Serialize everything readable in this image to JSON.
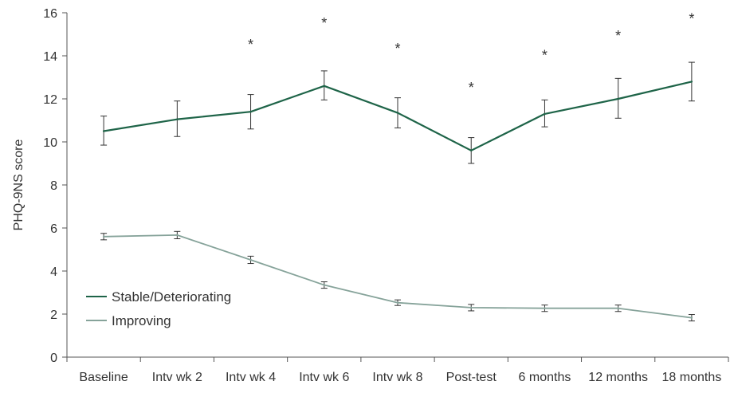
{
  "chart_data": {
    "type": "line",
    "title": "",
    "xlabel": "",
    "ylabel": "PHQ-9NS score",
    "ylim": [
      0,
      16
    ],
    "yticks": [
      0,
      2,
      4,
      6,
      8,
      10,
      12,
      14,
      16
    ],
    "grid": false,
    "legend_position": "bottom-left",
    "categories": [
      "Baseline",
      "Intv wk 2",
      "Intv wk 4",
      "Intv wk 6",
      "Intv wk 8",
      "Post-test",
      "6 months",
      "12 months",
      "18 months"
    ],
    "series": [
      {
        "name": "Stable/Deteriorating",
        "color": "#1e6448",
        "values": [
          10.5,
          11.05,
          11.4,
          12.6,
          11.35,
          9.6,
          11.3,
          12.0,
          12.8
        ],
        "error_low": [
          9.85,
          10.25,
          10.6,
          11.95,
          10.65,
          9.0,
          10.7,
          11.1,
          11.9
        ],
        "error_high": [
          11.2,
          11.9,
          12.2,
          13.3,
          12.05,
          10.2,
          11.95,
          12.95,
          13.7
        ]
      },
      {
        "name": "Improving",
        "color": "#86a39a",
        "values": [
          5.6,
          5.67,
          4.52,
          3.35,
          2.53,
          2.3,
          2.27,
          2.27,
          1.83
        ],
        "error_low": [
          5.45,
          5.5,
          4.35,
          3.2,
          2.4,
          2.15,
          2.12,
          2.12,
          1.68
        ],
        "error_high": [
          5.75,
          5.84,
          4.69,
          3.5,
          2.66,
          2.45,
          2.42,
          2.42,
          1.98
        ]
      }
    ],
    "annotations": [
      {
        "category": "Intv wk 4",
        "text": "*",
        "y": 14.6
      },
      {
        "category": "Intv wk 6",
        "text": "*",
        "y": 15.6
      },
      {
        "category": "Intv wk 8",
        "text": "*",
        "y": 14.4
      },
      {
        "category": "Post-test",
        "text": "*",
        "y": 12.6
      },
      {
        "category": "6 months",
        "text": "*",
        "y": 14.1
      },
      {
        "category": "12 months",
        "text": "*",
        "y": 15.0
      },
      {
        "category": "18 months",
        "text": "*",
        "y": 15.8
      }
    ]
  }
}
